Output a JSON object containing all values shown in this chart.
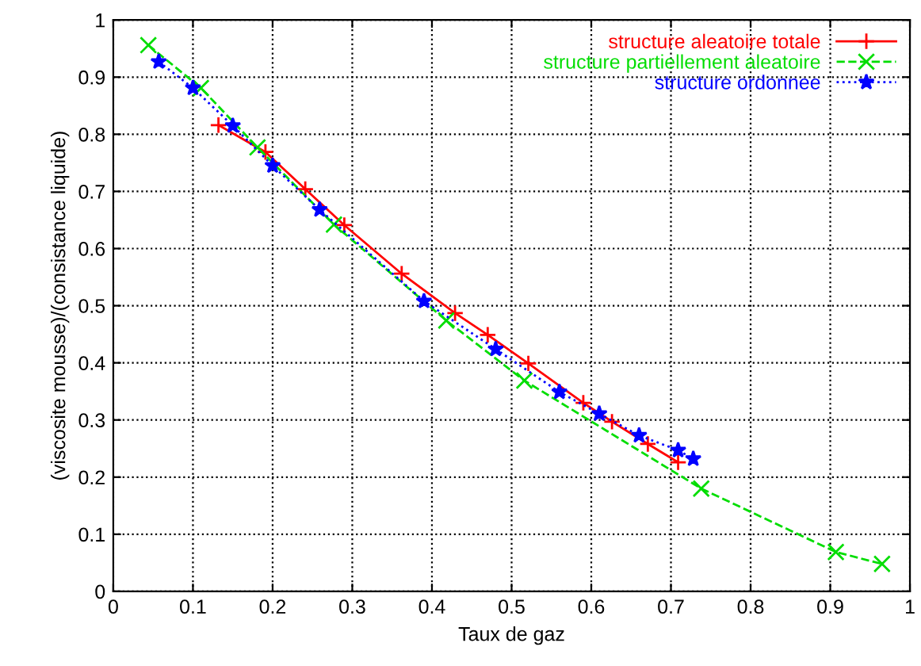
{
  "chart_data": {
    "type": "line",
    "xlabel": "Taux de gaz",
    "ylabel": "(viscosite mousse)/(consistance liquide)",
    "xlim": [
      0,
      1
    ],
    "ylim": [
      0,
      1
    ],
    "xticks": [
      0,
      0.1,
      0.2,
      0.3,
      0.4,
      0.5,
      0.6,
      0.7,
      0.8,
      0.9,
      1
    ],
    "yticks": [
      0,
      0.1,
      0.2,
      0.3,
      0.4,
      0.5,
      0.6,
      0.7,
      0.8,
      0.9,
      1
    ],
    "grid": true,
    "legend": "top right",
    "series": [
      {
        "name": "structure aleatoire totale",
        "color": "#ff0000",
        "marker": "plus",
        "line_style": "solid",
        "x": [
          0.132,
          0.191,
          0.241,
          0.29,
          0.362,
          0.429,
          0.47,
          0.521,
          0.59,
          0.626,
          0.671,
          0.709
        ],
        "values": [
          0.816,
          0.769,
          0.704,
          0.641,
          0.556,
          0.487,
          0.449,
          0.399,
          0.33,
          0.297,
          0.258,
          0.226
        ]
      },
      {
        "name": "structure partiellement aleatoire",
        "color": "#00dd00",
        "marker": "cross",
        "line_style": "dashed",
        "x": [
          0.044,
          0.11,
          0.181,
          0.277,
          0.418,
          0.516,
          0.738,
          0.907,
          0.965
        ],
        "values": [
          0.956,
          0.881,
          0.777,
          0.642,
          0.474,
          0.369,
          0.18,
          0.069,
          0.048
        ]
      },
      {
        "name": "structure ordonnee",
        "color": "#0000ff",
        "marker": "star",
        "line_style": "dotted",
        "x": [
          0.057,
          0.1,
          0.15,
          0.2,
          0.259,
          0.39,
          0.48,
          0.56,
          0.61,
          0.66,
          0.709,
          0.728
        ],
        "values": [
          0.927,
          0.881,
          0.815,
          0.745,
          0.668,
          0.508,
          0.424,
          0.349,
          0.311,
          0.273,
          0.247,
          0.232
        ]
      }
    ]
  }
}
